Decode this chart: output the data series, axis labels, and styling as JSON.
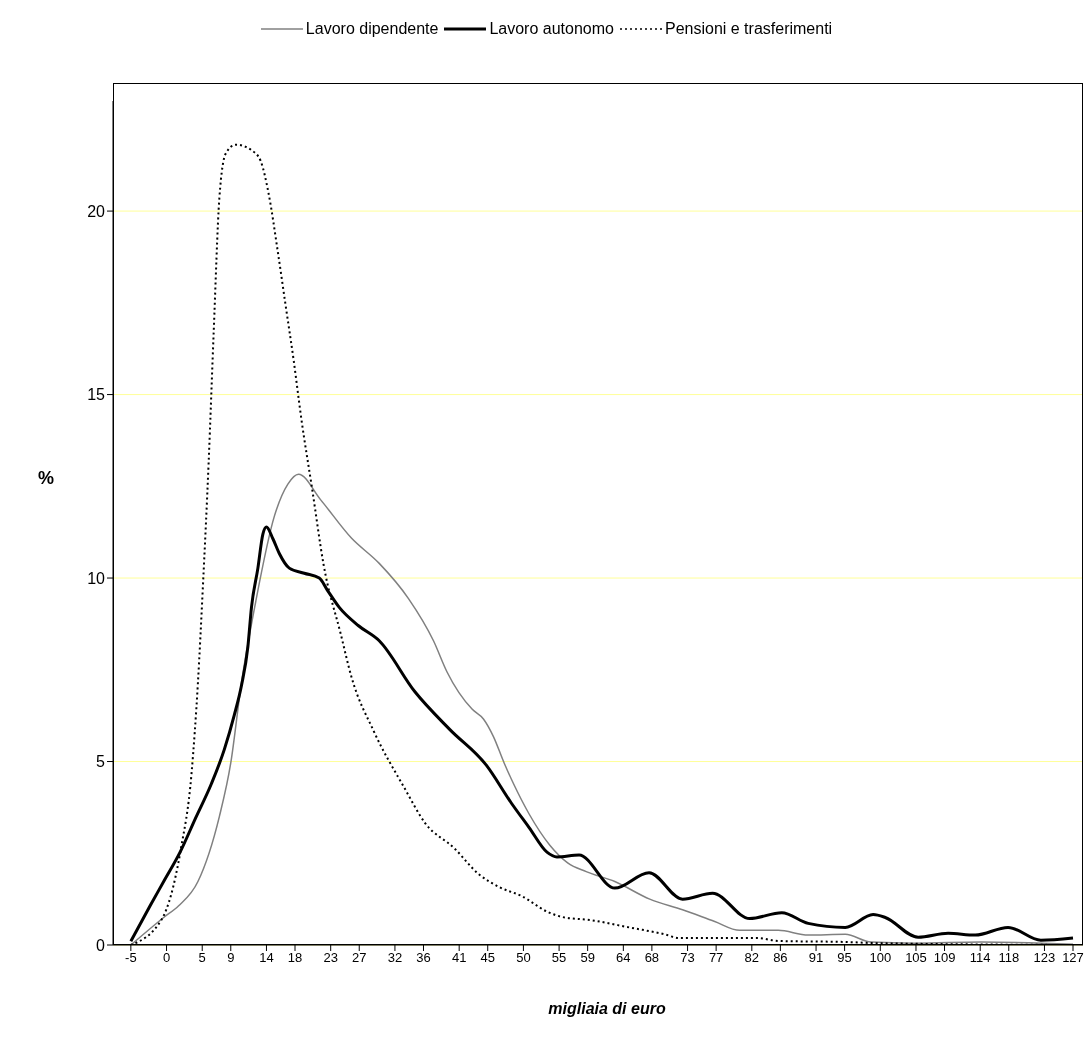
{
  "chart_data": {
    "type": "line",
    "xlabel": "migliaia di euro",
    "ylabel": "%",
    "xlim": [
      -7.5,
      128.4
    ],
    "ylim": [
      0,
      23
    ],
    "yticks": [
      0,
      5,
      10,
      15,
      20
    ],
    "xticks": [
      -5,
      0,
      5,
      9,
      14,
      18,
      23,
      27,
      32,
      36,
      41,
      45,
      50,
      55,
      59,
      64,
      68,
      73,
      77,
      82,
      86,
      91,
      95,
      100,
      105,
      109,
      114,
      118,
      123,
      127
    ],
    "grid": "y",
    "legend": "top",
    "marker": "none",
    "series": [
      {
        "name": "Lavoro dipendente",
        "color": "#808080",
        "line_style": "solid",
        "x": [
          -5,
          -0.4,
          1.7,
          4.4,
          7.4,
          9.0,
          10.5,
          12.5,
          15.1,
          17.0,
          18.5,
          21.6,
          25.9,
          29.8,
          33.9,
          37.4,
          39.3,
          42.8,
          44.4,
          45.8,
          47.3,
          48.6,
          50.8,
          53.7,
          56.2,
          58.8,
          62.8,
          67.7,
          72.3,
          76.8,
          80.3,
          85.7,
          89.9,
          95.1,
          98.7,
          104.9,
          114.1,
          127
        ],
        "values": [
          0,
          0.75,
          1.07,
          1.73,
          3.5,
          4.96,
          7.15,
          9.36,
          11.68,
          12.56,
          12.83,
          12.13,
          11.09,
          10.4,
          9.44,
          8.29,
          7.44,
          6.43,
          6.16,
          5.68,
          4.96,
          4.4,
          3.57,
          2.72,
          2.24,
          2.0,
          1.73,
          1.25,
          0.96,
          0.64,
          0.4,
          0.4,
          0.27,
          0.29,
          0.08,
          0.05,
          0.08,
          0.02
        ]
      },
      {
        "name": "Lavoro autonomo",
        "color": "#000000",
        "line_style": "solid",
        "x": [
          -5,
          -2.3,
          -0.4,
          1.9,
          4.1,
          6.3,
          8.1,
          9.5,
          10.5,
          11.4,
          11.9,
          12.8,
          13.5,
          14.0,
          14.9,
          15.8,
          17.2,
          19.3,
          21.4,
          22.5,
          24.2,
          26.9,
          29.8,
          34.8,
          39.7,
          44.8,
          48.3,
          50.8,
          53.3,
          54.7,
          57.8,
          62.8,
          67.6,
          72.3,
          76.5,
          81.7,
          86.2,
          89.9,
          95.1,
          99.0,
          100.7,
          105.3,
          109.5,
          113.3,
          117.9,
          122.5,
          127
        ],
        "values": [
          0.1,
          1.07,
          1.73,
          2.53,
          3.47,
          4.4,
          5.33,
          6.27,
          7.07,
          8.13,
          9.2,
          10.27,
          11.2,
          11.39,
          11.07,
          10.67,
          10.27,
          10.13,
          10.0,
          9.68,
          9.2,
          8.7,
          8.29,
          6.9,
          5.87,
          4.9,
          3.87,
          3.2,
          2.53,
          2.4,
          2.45,
          1.55,
          1.97,
          1.25,
          1.41,
          0.72,
          0.88,
          0.59,
          0.48,
          0.83,
          0.75,
          0.21,
          0.32,
          0.27,
          0.48,
          0.13,
          0.19
        ]
      },
      {
        "name": "Pensioni e trasferimenti",
        "color": "#000000",
        "line_style": "dotted",
        "x": [
          -5,
          -0.7,
          2.0,
          3.5,
          4.4,
          5.1,
          5.9,
          6.6,
          7.4,
          8.3,
          9.7,
          12.5,
          13.2,
          14.3,
          15.6,
          16.7,
          17.8,
          18.9,
          20.4,
          22.0,
          24.4,
          25.9,
          29.0,
          33.3,
          36.2,
          40.3,
          43.8,
          46.7,
          49.8,
          53.3,
          55.3,
          59.7,
          64.8,
          69.8,
          71.8,
          82.8,
          85.7,
          95.5,
          99.3,
          127
        ],
        "values": [
          0,
          0.69,
          2.61,
          4.67,
          7.15,
          9.79,
          13.15,
          16.67,
          20.35,
          21.57,
          21.81,
          21.57,
          21.36,
          20.48,
          18.88,
          17.41,
          15.95,
          14.32,
          12.43,
          10.37,
          8.48,
          7.31,
          5.84,
          4.29,
          3.33,
          2.64,
          1.92,
          1.57,
          1.33,
          0.91,
          0.77,
          0.67,
          0.48,
          0.29,
          0.19,
          0.19,
          0.11,
          0.08,
          0.05,
          0
        ]
      }
    ]
  }
}
